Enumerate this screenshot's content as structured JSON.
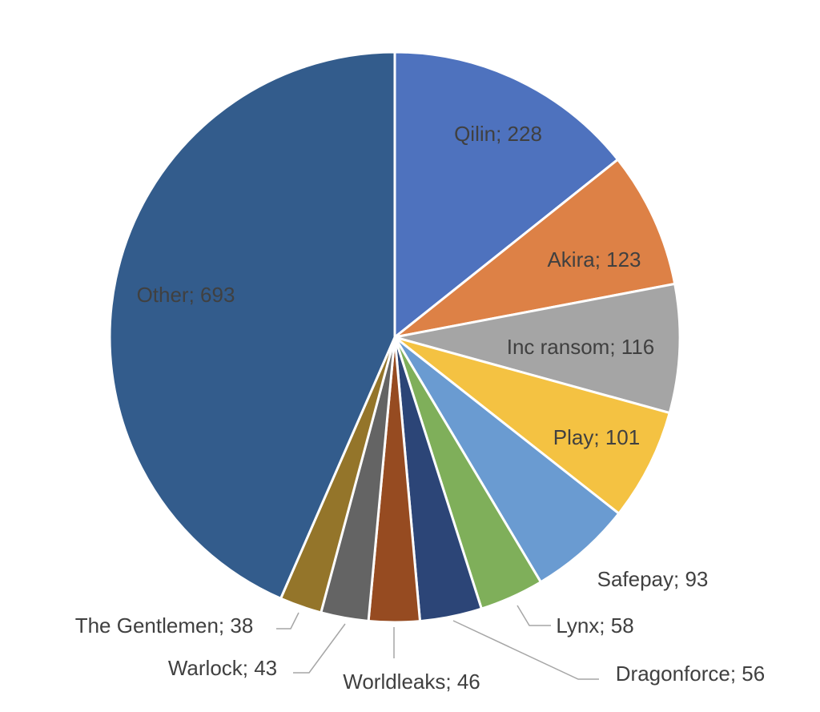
{
  "chart_data": {
    "type": "pie",
    "title": "",
    "start_angle": "top, clockwise",
    "slices": [
      {
        "label": "Qilin",
        "value": 228,
        "display": "Qilin; 228",
        "color": "#4E72BE"
      },
      {
        "label": "Akira",
        "value": 123,
        "display": "Akira; 123",
        "color": "#DD8146"
      },
      {
        "label": "Inc ransom",
        "value": 116,
        "display": "Inc ransom; 116",
        "color": "#A5A5A5"
      },
      {
        "label": "Play",
        "value": 101,
        "display": "Play; 101",
        "color": "#F4C242"
      },
      {
        "label": "Safepay",
        "value": 93,
        "display": "Safepay; 93",
        "color": "#6A9BD1"
      },
      {
        "label": "Lynx",
        "value": 58,
        "display": "Lynx; 58",
        "color": "#7FAF5A"
      },
      {
        "label": "Dragonforce",
        "value": 56,
        "display": "Dragonforce; 56",
        "color": "#2C4577"
      },
      {
        "label": "Worldleaks",
        "value": 46,
        "display": "Worldleaks; 46",
        "color": "#964B21"
      },
      {
        "label": "Warlock",
        "value": 43,
        "display": "Warlock; 43",
        "color": "#646464"
      },
      {
        "label": "The Gentlemen",
        "value": 38,
        "display": "The Gentlemen; 38",
        "color": "#94752A"
      },
      {
        "label": "Other",
        "value": 693,
        "display": "Other; 693",
        "color": "#335C8C"
      }
    ],
    "legend": "none",
    "data_labels": "category; value"
  }
}
